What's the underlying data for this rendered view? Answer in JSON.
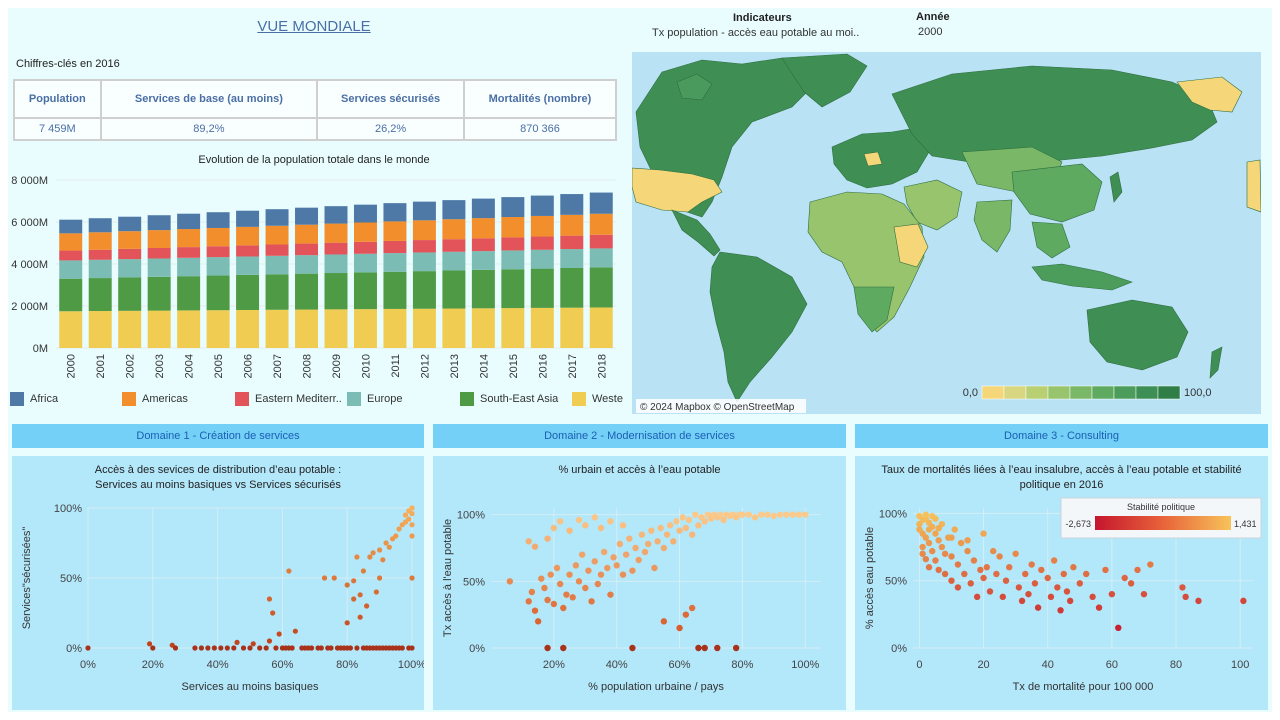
{
  "header": {
    "title": "VUE MONDIALE",
    "keyfigures_label": "Chiffres-clés en 2016"
  },
  "kpi": {
    "headers": [
      "Population",
      "Services de base (au moins)",
      "Services sécurisés",
      "Mortalités (nombre)"
    ],
    "values": [
      "7 459M",
      "89,2%",
      "26,2%",
      "870 366"
    ]
  },
  "indicators": {
    "label": "Indicateurs",
    "value": "Tx population - accès eau potable au moi..",
    "year_label": "Année",
    "year_value": "2000"
  },
  "map": {
    "attribution": "© 2024 Mapbox © OpenStreetMap",
    "scale_min": "0,0",
    "scale_max": "100,0",
    "scale_colors": [
      "#f5d77a",
      "#d9d681",
      "#b8cf72",
      "#98c46d",
      "#7ab868",
      "#5faa61",
      "#4c9d5b",
      "#3e8f55",
      "#2f7e48"
    ],
    "ocean_color": "#b9e2f5",
    "land_color": "#3f8f54"
  },
  "chart_data": [
    {
      "type": "bar",
      "title": "Evolution de la population totale dans le monde",
      "categories": [
        "2000",
        "2001",
        "2002",
        "2003",
        "2004",
        "2005",
        "2006",
        "2007",
        "2008",
        "2009",
        "2010",
        "2011",
        "2012",
        "2013",
        "2014",
        "2015",
        "2016",
        "2017",
        "2018"
      ],
      "y_ticks": [
        "0M",
        "2 000M",
        "4 000M",
        "6 000M",
        "8 000M"
      ],
      "ylim": [
        0,
        8000
      ],
      "series": [
        {
          "name": "Weste",
          "color": "#f0cd52",
          "values": [
            1750,
            1760,
            1770,
            1780,
            1790,
            1800,
            1810,
            1820,
            1830,
            1840,
            1850,
            1860,
            1870,
            1880,
            1890,
            1900,
            1910,
            1920,
            1930
          ]
        },
        {
          "name": "South-East Asia",
          "color": "#4f9a44",
          "values": [
            1550,
            1570,
            1590,
            1610,
            1630,
            1650,
            1670,
            1690,
            1710,
            1730,
            1750,
            1770,
            1790,
            1810,
            1830,
            1850,
            1870,
            1890,
            1910
          ]
        },
        {
          "name": "Europe",
          "color": "#7bbdb4",
          "values": [
            870,
            870,
            872,
            873,
            875,
            876,
            878,
            880,
            882,
            884,
            886,
            888,
            890,
            892,
            894,
            896,
            898,
            900,
            902
          ]
        },
        {
          "name": "Eastern Mediterr..",
          "color": "#e3545a",
          "values": [
            470,
            480,
            490,
            500,
            510,
            520,
            530,
            540,
            550,
            560,
            570,
            580,
            590,
            600,
            610,
            620,
            630,
            640,
            650
          ]
        },
        {
          "name": "Americas",
          "color": "#f28e2b",
          "values": [
            820,
            830,
            840,
            850,
            860,
            870,
            880,
            890,
            900,
            910,
            920,
            930,
            940,
            950,
            960,
            970,
            980,
            990,
            1000
          ]
        },
        {
          "name": "Africa",
          "color": "#4e79a7",
          "values": [
            650,
            670,
            690,
            710,
            730,
            750,
            770,
            790,
            810,
            830,
            850,
            870,
            890,
            910,
            930,
            950,
            970,
            990,
            1010
          ]
        }
      ]
    },
    {
      "type": "scatter",
      "title": "Accès à des sevices de distribution d’eau potable :",
      "subtitle": "Services au moins basiques vs Services sécurisés",
      "xlabel": "Services au moins basiques",
      "ylabel": "Services\"sécurisées\"",
      "x_ticks": [
        "0%",
        "20%",
        "40%",
        "60%",
        "80%",
        "100%"
      ],
      "y_ticks": [
        "0%",
        "50%",
        "100%"
      ],
      "xlim": [
        0,
        100
      ],
      "ylim": [
        0,
        100
      ],
      "points": [
        [
          0,
          0
        ],
        [
          19,
          3
        ],
        [
          20,
          0
        ],
        [
          26,
          2
        ],
        [
          27,
          0
        ],
        [
          33,
          0
        ],
        [
          35,
          0
        ],
        [
          37,
          0
        ],
        [
          39,
          0
        ],
        [
          41,
          0
        ],
        [
          43,
          0
        ],
        [
          45,
          0
        ],
        [
          46,
          4
        ],
        [
          48,
          0
        ],
        [
          50,
          0
        ],
        [
          51,
          3
        ],
        [
          53,
          0
        ],
        [
          55,
          0
        ],
        [
          56,
          5
        ],
        [
          56,
          35
        ],
        [
          57,
          25
        ],
        [
          58,
          0
        ],
        [
          59,
          10
        ],
        [
          60,
          0
        ],
        [
          61,
          0
        ],
        [
          62,
          0
        ],
        [
          62,
          55
        ],
        [
          63,
          0
        ],
        [
          64,
          12
        ],
        [
          66,
          0
        ],
        [
          67,
          0
        ],
        [
          68,
          0
        ],
        [
          69,
          0
        ],
        [
          71,
          0
        ],
        [
          72,
          0
        ],
        [
          73,
          50
        ],
        [
          74,
          0
        ],
        [
          75,
          0
        ],
        [
          76,
          50
        ],
        [
          77,
          0
        ],
        [
          78,
          0
        ],
        [
          79,
          0
        ],
        [
          80,
          0
        ],
        [
          80,
          45
        ],
        [
          80,
          18
        ],
        [
          81,
          0
        ],
        [
          82,
          48
        ],
        [
          82,
          35
        ],
        [
          83,
          0
        ],
        [
          83,
          65
        ],
        [
          84,
          22
        ],
        [
          84,
          38
        ],
        [
          85,
          0
        ],
        [
          85,
          55
        ],
        [
          86,
          0
        ],
        [
          86,
          30
        ],
        [
          87,
          0
        ],
        [
          87,
          65
        ],
        [
          88,
          68
        ],
        [
          88,
          0
        ],
        [
          89,
          0
        ],
        [
          89,
          40
        ],
        [
          90,
          0
        ],
        [
          90,
          70
        ],
        [
          90,
          50
        ],
        [
          91,
          0
        ],
        [
          91,
          63
        ],
        [
          92,
          0
        ],
        [
          92,
          75
        ],
        [
          93,
          0
        ],
        [
          93,
          72
        ],
        [
          94,
          0
        ],
        [
          94,
          78
        ],
        [
          95,
          80
        ],
        [
          95,
          0
        ],
        [
          96,
          85
        ],
        [
          96,
          0
        ],
        [
          97,
          0
        ],
        [
          97,
          88
        ],
        [
          98,
          90
        ],
        [
          98,
          95
        ],
        [
          99,
          0
        ],
        [
          99,
          92
        ],
        [
          99,
          98
        ],
        [
          100,
          100
        ],
        [
          100,
          80
        ],
        [
          100,
          88
        ],
        [
          100,
          96
        ],
        [
          100,
          0
        ],
        [
          100,
          50
        ]
      ]
    },
    {
      "type": "scatter",
      "title": "% urbain et accès à l’eau potable",
      "xlabel": "% population urbaine / pays",
      "ylabel": "Tx accès à l'eau potable",
      "x_ticks": [
        "20%",
        "40%",
        "60%",
        "80%",
        "100%"
      ],
      "y_ticks": [
        "0%",
        "50%",
        "100%"
      ],
      "xlim": [
        0,
        105
      ],
      "ylim": [
        0,
        105
      ],
      "points": [
        [
          6,
          50
        ],
        [
          12,
          35
        ],
        [
          13,
          42
        ],
        [
          14,
          28
        ],
        [
          15,
          20
        ],
        [
          16,
          52
        ],
        [
          17,
          45
        ],
        [
          18,
          36
        ],
        [
          18,
          0
        ],
        [
          19,
          55
        ],
        [
          20,
          33
        ],
        [
          21,
          60
        ],
        [
          22,
          48
        ],
        [
          23,
          30
        ],
        [
          23,
          0
        ],
        [
          24,
          40
        ],
        [
          25,
          55
        ],
        [
          26,
          38
        ],
        [
          27,
          62
        ],
        [
          28,
          50
        ],
        [
          29,
          70
        ],
        [
          30,
          45
        ],
        [
          31,
          58
        ],
        [
          32,
          35
        ],
        [
          33,
          65
        ],
        [
          34,
          48
        ],
        [
          35,
          55
        ],
        [
          36,
          72
        ],
        [
          37,
          60
        ],
        [
          38,
          40
        ],
        [
          39,
          68
        ],
        [
          40,
          62
        ],
        [
          41,
          78
        ],
        [
          42,
          55
        ],
        [
          43,
          70
        ],
        [
          44,
          82
        ],
        [
          45,
          58
        ],
        [
          45,
          0
        ],
        [
          46,
          75
        ],
        [
          47,
          66
        ],
        [
          48,
          85
        ],
        [
          49,
          72
        ],
        [
          50,
          78
        ],
        [
          51,
          88
        ],
        [
          52,
          60
        ],
        [
          53,
          80
        ],
        [
          54,
          90
        ],
        [
          55,
          75
        ],
        [
          56,
          85
        ],
        [
          57,
          92
        ],
        [
          58,
          80
        ],
        [
          59,
          95
        ],
        [
          60,
          88
        ],
        [
          61,
          98
        ],
        [
          62,
          90
        ],
        [
          63,
          96
        ],
        [
          64,
          85
        ],
        [
          65,
          100
        ],
        [
          66,
          92
        ],
        [
          67,
          98
        ],
        [
          68,
          95
        ],
        [
          69,
          100
        ],
        [
          70,
          97
        ],
        [
          71,
          100
        ],
        [
          72,
          98
        ],
        [
          73,
          100
        ],
        [
          74,
          96
        ],
        [
          75,
          100
        ],
        [
          76,
          99
        ],
        [
          77,
          100
        ],
        [
          78,
          98
        ],
        [
          79,
          100
        ],
        [
          80,
          100
        ],
        [
          82,
          100
        ],
        [
          84,
          98
        ],
        [
          86,
          100
        ],
        [
          88,
          100
        ],
        [
          90,
          99
        ],
        [
          92,
          100
        ],
        [
          94,
          100
        ],
        [
          96,
          100
        ],
        [
          98,
          100
        ],
        [
          100,
          100
        ],
        [
          12,
          80
        ],
        [
          14,
          76
        ],
        [
          18,
          82
        ],
        [
          20,
          90
        ],
        [
          22,
          95
        ],
        [
          25,
          88
        ],
        [
          28,
          96
        ],
        [
          30,
          92
        ],
        [
          33,
          98
        ],
        [
          35,
          90
        ],
        [
          38,
          95
        ],
        [
          42,
          92
        ],
        [
          66,
          0
        ],
        [
          68,
          0
        ],
        [
          72,
          0
        ],
        [
          78,
          0
        ],
        [
          55,
          20
        ],
        [
          60,
          15
        ],
        [
          62,
          25
        ],
        [
          64,
          30
        ]
      ]
    },
    {
      "type": "scatter",
      "title": "Taux de mortalités liées à l’eau insalubre,  accès à l’eau potable et stabilité",
      "subtitle": "politique en 2016",
      "xlabel": "Tx de mortalité pour 100 000",
      "ylabel": "% accès eau potable",
      "x_ticks": [
        "0",
        "20",
        "40",
        "60",
        "80",
        "100"
      ],
      "y_ticks": [
        "0%",
        "50%",
        "100%"
      ],
      "xlim": [
        -2,
        104
      ],
      "ylim": [
        0,
        104
      ],
      "legend_title": "Stabilité politique",
      "legend_min": "-2,673",
      "legend_max": "1,431",
      "points": [
        [
          0,
          98
        ],
        [
          0,
          92
        ],
        [
          0,
          88
        ],
        [
          1,
          95
        ],
        [
          1,
          85
        ],
        [
          1,
          75
        ],
        [
          1,
          70
        ],
        [
          2,
          96
        ],
        [
          2,
          82
        ],
        [
          2,
          66
        ],
        [
          3,
          93
        ],
        [
          3,
          78
        ],
        [
          3,
          60
        ],
        [
          4,
          90
        ],
        [
          4,
          72
        ],
        [
          5,
          85
        ],
        [
          5,
          65
        ],
        [
          6,
          80
        ],
        [
          6,
          58
        ],
        [
          7,
          75
        ],
        [
          7,
          92
        ],
        [
          8,
          70
        ],
        [
          8,
          55
        ],
        [
          9,
          82
        ],
        [
          10,
          68
        ],
        [
          10,
          50
        ],
        [
          11,
          88
        ],
        [
          12,
          62
        ],
        [
          12,
          45
        ],
        [
          13,
          78
        ],
        [
          14,
          55
        ],
        [
          15,
          72
        ],
        [
          16,
          48
        ],
        [
          17,
          65
        ],
        [
          18,
          38
        ],
        [
          19,
          58
        ],
        [
          20,
          85
        ],
        [
          20,
          52
        ],
        [
          21,
          60
        ],
        [
          22,
          42
        ],
        [
          23,
          72
        ],
        [
          24,
          55
        ],
        [
          25,
          68
        ],
        [
          26,
          38
        ],
        [
          27,
          50
        ],
        [
          28,
          60
        ],
        [
          30,
          70
        ],
        [
          31,
          45
        ],
        [
          32,
          35
        ],
        [
          33,
          55
        ],
        [
          34,
          40
        ],
        [
          35,
          62
        ],
        [
          36,
          48
        ],
        [
          37,
          30
        ],
        [
          38,
          58
        ],
        [
          40,
          52
        ],
        [
          41,
          38
        ],
        [
          42,
          65
        ],
        [
          43,
          45
        ],
        [
          44,
          28
        ],
        [
          45,
          55
        ],
        [
          46,
          42
        ],
        [
          47,
          35
        ],
        [
          48,
          60
        ],
        [
          50,
          48
        ],
        [
          52,
          55
        ],
        [
          54,
          38
        ],
        [
          56,
          30
        ],
        [
          58,
          58
        ],
        [
          60,
          40
        ],
        [
          62,
          15
        ],
        [
          64,
          52
        ],
        [
          66,
          48
        ],
        [
          68,
          58
        ],
        [
          70,
          40
        ],
        [
          72,
          62
        ],
        [
          82,
          45
        ],
        [
          83,
          38
        ],
        [
          87,
          35
        ],
        [
          101,
          35
        ],
        [
          4,
          98
        ],
        [
          3,
          88
        ],
        [
          5,
          96
        ],
        [
          2,
          99
        ],
        [
          6,
          89
        ],
        [
          10,
          82
        ],
        [
          15,
          80
        ]
      ]
    }
  ],
  "domains": [
    "Domaine 1 - Création de services",
    "Domaine 2 - Modernisation de services",
    "Domaine 3 - Consulting"
  ]
}
